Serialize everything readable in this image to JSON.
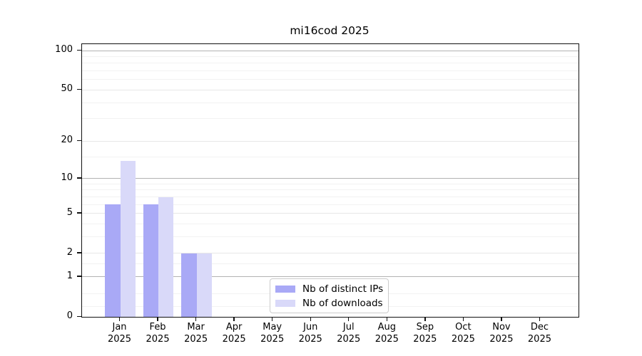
{
  "title": "mi16cod 2025",
  "chart_data": {
    "type": "bar",
    "title": "mi16cod 2025",
    "categories": [
      "Jan",
      "Feb",
      "Mar",
      "Apr",
      "May",
      "Jun",
      "Jul",
      "Aug",
      "Sep",
      "Oct",
      "Nov",
      "Dec"
    ],
    "x_tick_second_line": "2025",
    "series": [
      {
        "name": "Nb of distinct IPs",
        "color": "#a9a9f6",
        "values": [
          6,
          6,
          2,
          0,
          0,
          0,
          0,
          0,
          0,
          0,
          0,
          0
        ]
      },
      {
        "name": "Nb of downloads",
        "color": "#d9d9f9",
        "values": [
          14,
          7,
          2,
          0,
          0,
          0,
          0,
          0,
          0,
          0,
          0,
          0
        ]
      }
    ],
    "scale": "log1p",
    "ylim": [
      0,
      112
    ],
    "y_ticks": [
      0,
      1,
      2,
      5,
      10,
      20,
      50,
      100
    ],
    "y_minor_ticks": [
      0.2,
      0.5,
      1.5,
      3,
      4,
      6,
      7,
      8,
      9,
      15,
      30,
      40,
      60,
      70,
      80,
      90
    ],
    "grid": true,
    "legend_position": "lower-center",
    "colors": {
      "grid_major": "#b3b3b3",
      "grid_mid": "#e7e7e7",
      "grid_minor": "#f2f2f2",
      "spine": "#111111",
      "text": "#000000"
    }
  }
}
